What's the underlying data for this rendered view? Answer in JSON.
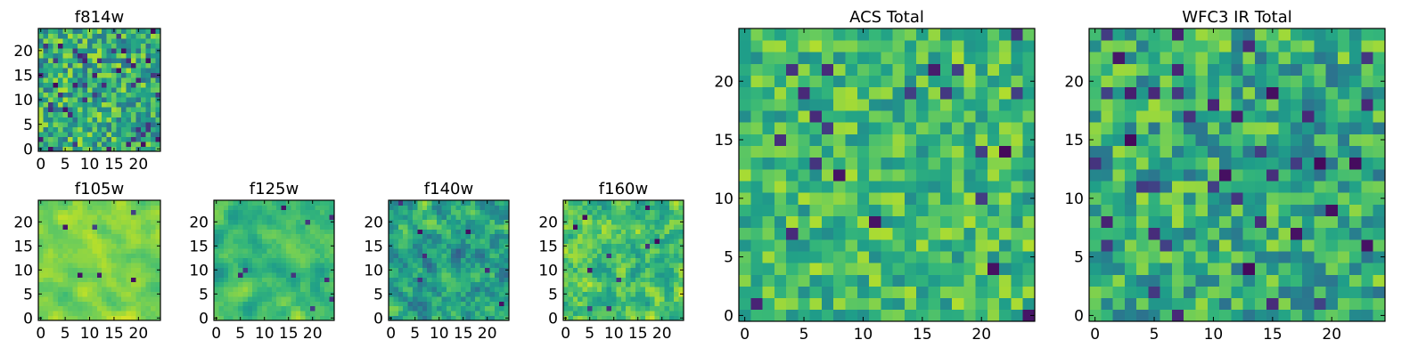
{
  "chart_data": [
    {
      "id": "f814w",
      "type": "heatmap",
      "title": "f814w",
      "colormap": "viridis",
      "size": 25,
      "seed": 814,
      "low_dip_fraction": 0.06,
      "smooth": 0,
      "bias": 0.62,
      "spread": 0.22,
      "xlim": [
        0,
        24
      ],
      "ylim": [
        0,
        24
      ],
      "xticks": [
        0,
        5,
        10,
        15,
        20
      ],
      "yticks": [
        0,
        5,
        10,
        15,
        20
      ]
    },
    {
      "id": "f105w",
      "type": "heatmap",
      "title": "f105w",
      "colormap": "viridis",
      "size": 25,
      "seed": 105,
      "low_dip_fraction": 0.012,
      "smooth": 2,
      "bias": 0.8,
      "spread": 0.14,
      "xlim": [
        0,
        24
      ],
      "ylim": [
        0,
        24
      ],
      "xticks": [
        0,
        5,
        10,
        15,
        20
      ],
      "yticks": [
        0,
        5,
        10,
        15,
        20
      ]
    },
    {
      "id": "f125w",
      "type": "heatmap",
      "title": "f125w",
      "colormap": "viridis",
      "size": 25,
      "seed": 125,
      "low_dip_fraction": 0.012,
      "smooth": 2,
      "bias": 0.68,
      "spread": 0.2,
      "xlim": [
        0,
        24
      ],
      "ylim": [
        0,
        24
      ],
      "xticks": [
        0,
        5,
        10,
        15,
        20
      ],
      "yticks": [
        0,
        5,
        10,
        15,
        20
      ]
    },
    {
      "id": "f140w",
      "type": "heatmap",
      "title": "f140w",
      "colormap": "viridis",
      "size": 25,
      "seed": 140,
      "low_dip_fraction": 0.015,
      "smooth": 1,
      "bias": 0.58,
      "spread": 0.22,
      "xlim": [
        0,
        24
      ],
      "ylim": [
        0,
        24
      ],
      "xticks": [
        0,
        5,
        10,
        15,
        20
      ],
      "yticks": [
        0,
        5,
        10,
        15,
        20
      ]
    },
    {
      "id": "f160w",
      "type": "heatmap",
      "title": "f160w",
      "colormap": "viridis",
      "size": 25,
      "seed": 160,
      "low_dip_fraction": 0.015,
      "smooth": 1,
      "bias": 0.7,
      "spread": 0.2,
      "xlim": [
        0,
        24
      ],
      "ylim": [
        0,
        24
      ],
      "xticks": [
        0,
        5,
        10,
        15,
        20
      ],
      "yticks": [
        0,
        5,
        10,
        15,
        20
      ]
    },
    {
      "id": "acs-total",
      "type": "heatmap",
      "title": "ACS Total",
      "colormap": "viridis",
      "size": 25,
      "seed": 2001,
      "low_dip_fraction": 0.035,
      "smooth": 0,
      "bias": 0.68,
      "spread": 0.17,
      "xlim": [
        0,
        24
      ],
      "ylim": [
        0,
        24
      ],
      "xticks": [
        0,
        5,
        10,
        15,
        20
      ],
      "yticks": [
        0,
        5,
        10,
        15,
        20
      ]
    },
    {
      "id": "wfc3-ir-total",
      "type": "heatmap",
      "title": "WFC3 IR Total",
      "colormap": "viridis",
      "size": 25,
      "seed": 3001,
      "low_dip_fraction": 0.05,
      "smooth": 0,
      "bias": 0.62,
      "spread": 0.2,
      "xlim": [
        0,
        24
      ],
      "ylim": [
        0,
        24
      ],
      "xticks": [
        0,
        5,
        10,
        15,
        20
      ],
      "yticks": [
        0,
        5,
        10,
        15,
        20
      ]
    }
  ]
}
